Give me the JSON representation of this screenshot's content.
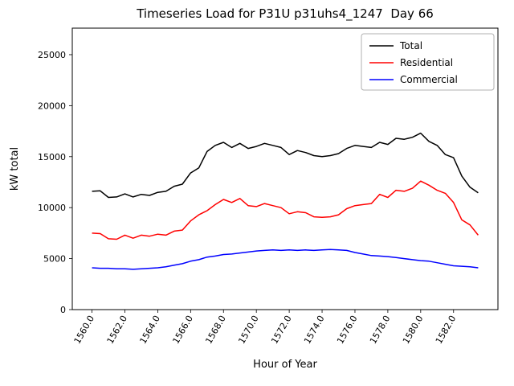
{
  "chart_data": {
    "type": "line",
    "title": "Timeseries Load for P31U p31uhs4_1247  Day 66",
    "xlabel": "Hour of Year",
    "ylabel": "kW total",
    "xlim": [
      1558.8,
      1584.7
    ],
    "ylim": [
      0,
      27600
    ],
    "xticks": [
      1560.0,
      1562.0,
      1564.0,
      1566.0,
      1568.0,
      1570.0,
      1572.0,
      1574.0,
      1576.0,
      1578.0,
      1580.0,
      1582.0
    ],
    "yticks": [
      0,
      5000,
      10000,
      15000,
      20000,
      25000
    ],
    "grid": false,
    "legend_position": "upper right",
    "x": [
      1560.0,
      1560.5,
      1561.0,
      1561.5,
      1562.0,
      1562.5,
      1563.0,
      1563.5,
      1564.0,
      1564.5,
      1565.0,
      1565.5,
      1566.0,
      1566.5,
      1567.0,
      1567.5,
      1568.0,
      1568.5,
      1569.0,
      1569.5,
      1570.0,
      1570.5,
      1571.0,
      1571.5,
      1572.0,
      1572.5,
      1573.0,
      1573.5,
      1574.0,
      1574.5,
      1575.0,
      1575.5,
      1576.0,
      1576.5,
      1577.0,
      1577.5,
      1578.0,
      1578.5,
      1579.0,
      1579.5,
      1580.0,
      1580.5,
      1581.0,
      1581.5,
      1582.0,
      1582.5,
      1583.0,
      1583.5
    ],
    "series": [
      {
        "name": "Total",
        "color": "#000000",
        "values": [
          11600,
          11650,
          11000,
          11050,
          11350,
          11050,
          11300,
          11200,
          11500,
          11600,
          12100,
          12300,
          13400,
          13900,
          15500,
          16100,
          16400,
          15900,
          16300,
          15800,
          16000,
          16300,
          16100,
          15900,
          15200,
          15600,
          15400,
          15100,
          15000,
          15100,
          15300,
          15800,
          16100,
          16000,
          15900,
          16400,
          16200,
          16800,
          16700,
          16900,
          17300,
          16500,
          16100,
          15200,
          14900,
          13100,
          12000,
          11450
        ]
      },
      {
        "name": "Residential",
        "color": "#ff0000",
        "values": [
          7500,
          7450,
          6950,
          6900,
          7300,
          7000,
          7300,
          7200,
          7400,
          7300,
          7700,
          7800,
          8700,
          9300,
          9700,
          10300,
          10800,
          10500,
          10900,
          10200,
          10100,
          10400,
          10200,
          10000,
          9400,
          9600,
          9500,
          9100,
          9050,
          9100,
          9300,
          9900,
          10200,
          10300,
          10400,
          11300,
          11000,
          11700,
          11600,
          11900,
          12600,
          12200,
          11700,
          11400,
          10500,
          8800,
          8300,
          7300
        ]
      },
      {
        "name": "Commercial",
        "color": "#0000ff",
        "values": [
          4100,
          4050,
          4050,
          4000,
          4000,
          3950,
          4000,
          4050,
          4100,
          4200,
          4350,
          4500,
          4750,
          4900,
          5150,
          5250,
          5400,
          5450,
          5550,
          5650,
          5750,
          5800,
          5850,
          5800,
          5850,
          5800,
          5850,
          5800,
          5850,
          5900,
          5850,
          5800,
          5600,
          5450,
          5300,
          5250,
          5200,
          5100,
          5000,
          4900,
          4800,
          4750,
          4600,
          4450,
          4300,
          4250,
          4200,
          4100
        ]
      }
    ]
  }
}
